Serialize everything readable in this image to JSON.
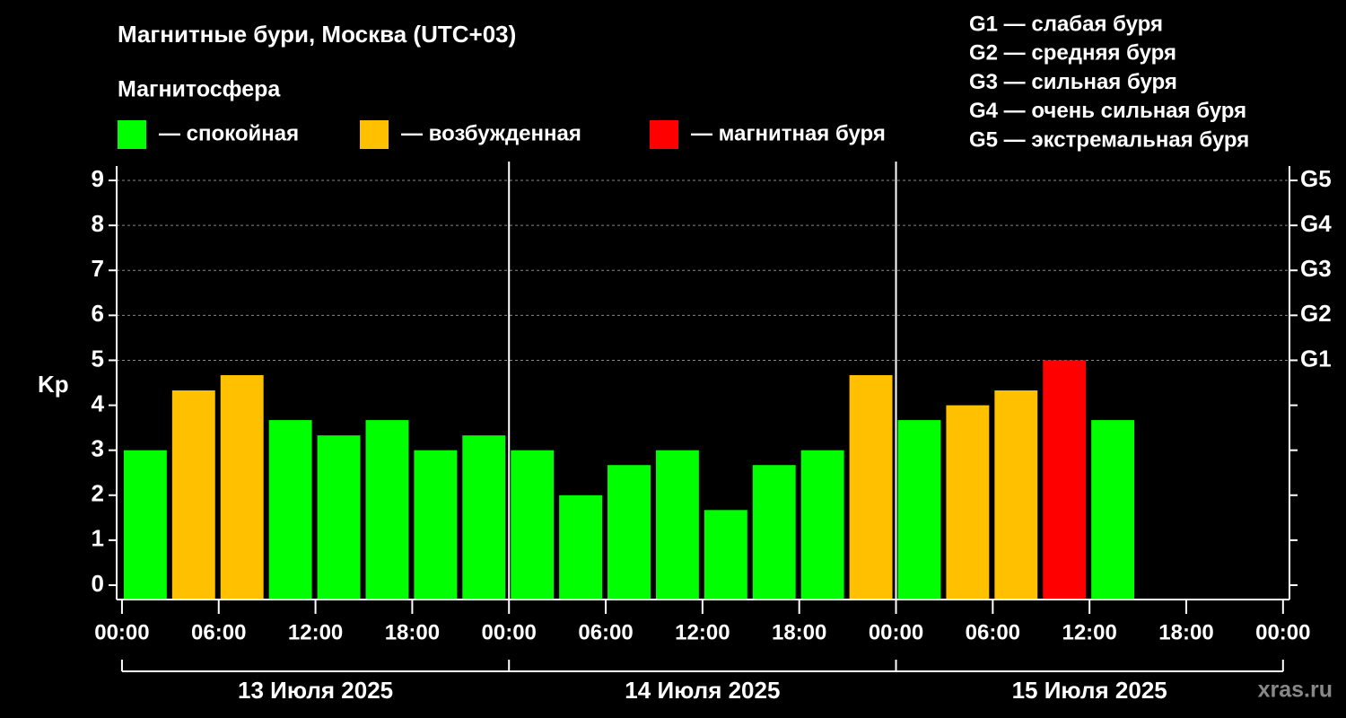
{
  "chart_data": {
    "type": "bar",
    "title": "Магнитные бури, Москва (UTC+03)",
    "subtitle": "Магнитосфера",
    "legend": [
      {
        "label": "— спокойная",
        "color": "#00ff00"
      },
      {
        "label": "— возбужденная",
        "color": "#ffc000"
      },
      {
        "label": "— магнитная буря",
        "color": "#ff0000"
      }
    ],
    "storm_scale": [
      "G1 — слабая буря",
      "G2 — средняя буря",
      "G3 — сильная буря",
      "G4 — очень сильная буря",
      "G5 — экстремальная буря"
    ],
    "ylabel": "Kp",
    "x": [
      0,
      3,
      6,
      9,
      12,
      15,
      18,
      21,
      24,
      27,
      30,
      33,
      36,
      39,
      42,
      45,
      48,
      51,
      54,
      57,
      60
    ],
    "bar_width": 3,
    "values": [
      3.0,
      4.33,
      4.67,
      3.67,
      3.33,
      3.67,
      3.0,
      3.33,
      3.0,
      2.0,
      2.67,
      3.0,
      1.67,
      2.67,
      3.0,
      4.67,
      3.67,
      4.0,
      4.33,
      5.0,
      3.67
    ],
    "colors": [
      "#00ff00",
      "#ffc000",
      "#ffc000",
      "#00ff00",
      "#00ff00",
      "#00ff00",
      "#00ff00",
      "#00ff00",
      "#00ff00",
      "#00ff00",
      "#00ff00",
      "#00ff00",
      "#00ff00",
      "#00ff00",
      "#00ff00",
      "#ffc000",
      "#00ff00",
      "#ffc000",
      "#ffc000",
      "#ff0000",
      "#00ff00"
    ],
    "xlim": [
      -0.33,
      72.4
    ],
    "xticks": [
      {
        "value": 0,
        "label": "00:00"
      },
      {
        "value": 6,
        "label": "06:00"
      },
      {
        "value": 12,
        "label": "12:00"
      },
      {
        "value": 18,
        "label": "18:00"
      },
      {
        "value": 24,
        "label": "00:00"
      },
      {
        "value": 30,
        "label": "06:00"
      },
      {
        "value": 36,
        "label": "12:00"
      },
      {
        "value": 42,
        "label": "18:00"
      },
      {
        "value": 48,
        "label": "00:00"
      },
      {
        "value": 54,
        "label": "06:00"
      },
      {
        "value": 60,
        "label": "12:00"
      },
      {
        "value": 66,
        "label": "18:00"
      },
      {
        "value": 72,
        "label": "00:00"
      }
    ],
    "days": [
      "13 Июля 2025",
      "14 Июля 2025",
      "15 Июля 2025"
    ],
    "day_hours": 24,
    "ylim": [
      -0.32,
      9.32
    ],
    "yticks": [
      0,
      1,
      2,
      3,
      4,
      5,
      6,
      7,
      8,
      9
    ],
    "y2ticks": [
      {
        "value": 5,
        "label": "G1"
      },
      {
        "value": 6,
        "label": "G2"
      },
      {
        "value": 7,
        "label": "G3"
      },
      {
        "value": 8,
        "label": "G4"
      },
      {
        "value": 9,
        "label": "G5"
      }
    ],
    "grid": true,
    "watermark": "xras.ru"
  }
}
